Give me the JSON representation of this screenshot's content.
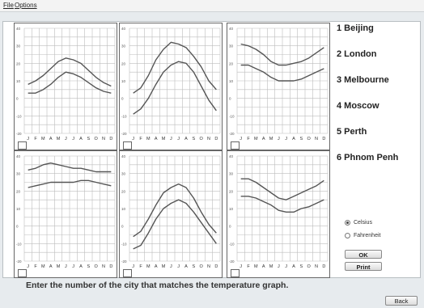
{
  "menu": {
    "file": "File",
    "options": "Options"
  },
  "axis": {
    "y_ticks": [
      "40",
      "30",
      "20",
      "10",
      "0",
      "-10",
      "-20"
    ],
    "months": [
      "J",
      "F",
      "M",
      "A",
      "M",
      "J",
      "J",
      "A",
      "S",
      "O",
      "N",
      "D"
    ]
  },
  "chart_data": [
    {
      "type": "line",
      "ylim": [
        -20,
        40
      ],
      "x": [
        "J",
        "F",
        "M",
        "A",
        "M",
        "J",
        "J",
        "A",
        "S",
        "O",
        "N",
        "D"
      ],
      "series": [
        {
          "values": [
            8,
            10,
            13,
            17,
            21,
            23,
            22,
            20,
            16,
            12,
            9,
            7
          ]
        },
        {
          "values": [
            3,
            3,
            5,
            8,
            12,
            15,
            14,
            12,
            9,
            6,
            4,
            3
          ]
        }
      ]
    },
    {
      "type": "line",
      "ylim": [
        -20,
        40
      ],
      "x": [
        "J",
        "F",
        "M",
        "A",
        "M",
        "J",
        "J",
        "A",
        "S",
        "O",
        "N",
        "D"
      ],
      "series": [
        {
          "values": [
            3,
            6,
            13,
            22,
            28,
            32,
            31,
            29,
            24,
            18,
            10,
            5
          ]
        },
        {
          "values": [
            -9,
            -6,
            0,
            8,
            15,
            19,
            21,
            20,
            15,
            7,
            -1,
            -7
          ]
        }
      ]
    },
    {
      "type": "line",
      "ylim": [
        -20,
        40
      ],
      "x": [
        "J",
        "F",
        "M",
        "A",
        "M",
        "J",
        "J",
        "A",
        "S",
        "O",
        "N",
        "D"
      ],
      "series": [
        {
          "values": [
            31,
            30,
            28,
            25,
            21,
            19,
            19,
            20,
            21,
            23,
            26,
            29
          ]
        },
        {
          "values": [
            19,
            19,
            17,
            15,
            12,
            10,
            10,
            10,
            11,
            13,
            15,
            17
          ]
        }
      ]
    },
    {
      "type": "line",
      "ylim": [
        -20,
        40
      ],
      "x": [
        "J",
        "F",
        "M",
        "A",
        "M",
        "J",
        "J",
        "A",
        "S",
        "O",
        "N",
        "D"
      ],
      "series": [
        {
          "values": [
            32,
            33,
            35,
            36,
            35,
            34,
            33,
            33,
            32,
            31,
            31,
            31
          ]
        },
        {
          "values": [
            22,
            23,
            24,
            25,
            25,
            25,
            25,
            26,
            26,
            25,
            24,
            23
          ]
        }
      ]
    },
    {
      "type": "line",
      "ylim": [
        -20,
        40
      ],
      "x": [
        "J",
        "F",
        "M",
        "A",
        "M",
        "J",
        "J",
        "A",
        "S",
        "O",
        "N",
        "D"
      ],
      "series": [
        {
          "values": [
            -6,
            -3,
            4,
            12,
            19,
            22,
            24,
            22,
            16,
            8,
            1,
            -4
          ]
        },
        {
          "values": [
            -13,
            -11,
            -4,
            4,
            10,
            13,
            15,
            13,
            8,
            2,
            -4,
            -10
          ]
        }
      ]
    },
    {
      "type": "line",
      "ylim": [
        -20,
        40
      ],
      "x": [
        "J",
        "F",
        "M",
        "A",
        "M",
        "J",
        "J",
        "A",
        "S",
        "O",
        "N",
        "D"
      ],
      "series": [
        {
          "values": [
            27,
            27,
            25,
            22,
            19,
            16,
            15,
            17,
            19,
            21,
            23,
            26
          ]
        },
        {
          "values": [
            17,
            17,
            16,
            14,
            12,
            9,
            8,
            8,
            10,
            11,
            13,
            15
          ]
        }
      ]
    }
  ],
  "cities": [
    {
      "num": "1",
      "name": "Beijing"
    },
    {
      "num": "2",
      "name": "London"
    },
    {
      "num": "3",
      "name": "Melbourne"
    },
    {
      "num": "4",
      "name": "Moscow"
    },
    {
      "num": "5",
      "name": "Perth"
    },
    {
      "num": "6",
      "name": "Phnom Penh"
    }
  ],
  "units": {
    "celsius": "Celsius",
    "fahrenheit": "Fahrenheit",
    "selected": "Celsius"
  },
  "buttons": {
    "ok": "OK",
    "print": "Print",
    "back": "Back"
  },
  "instruction": "Enter the number of the city that matches the temperature graph.",
  "colors": {
    "line": "#555555",
    "grid": "#bdbdbd"
  }
}
